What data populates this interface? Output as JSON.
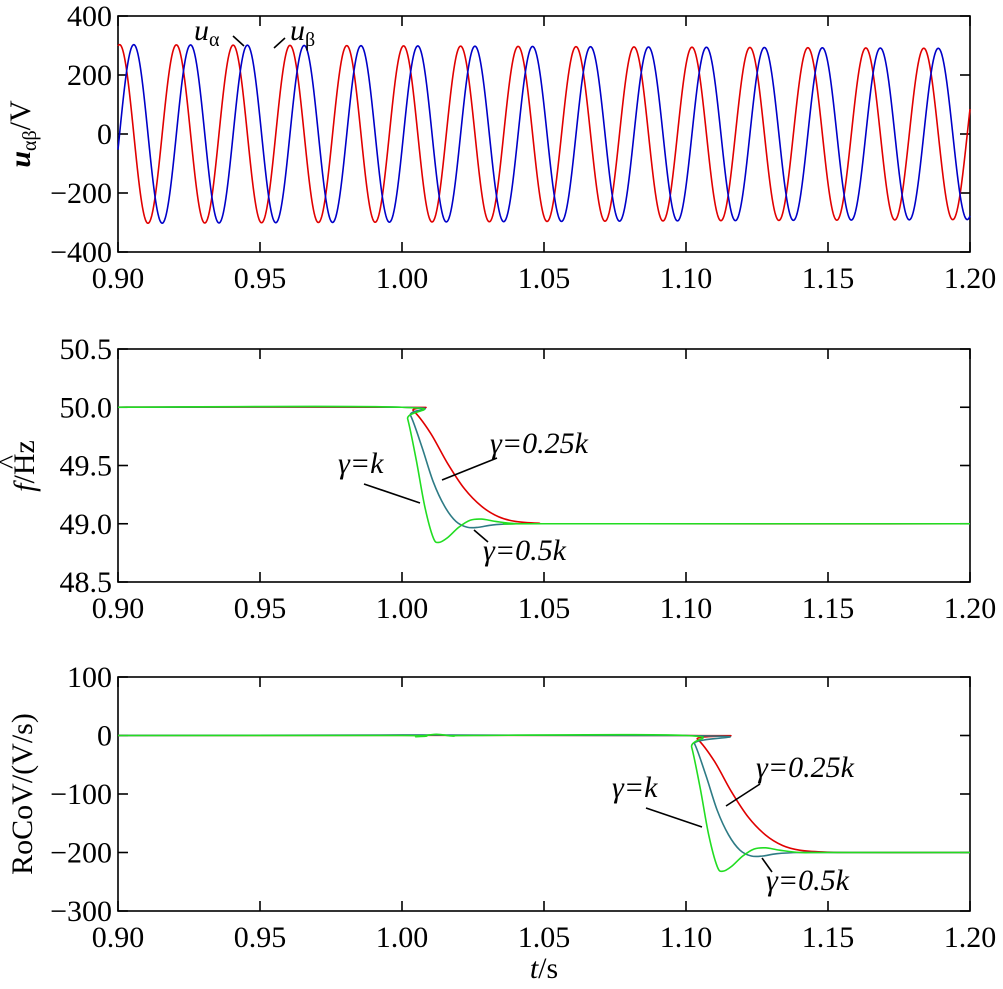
{
  "chart_data": [
    {
      "type": "line",
      "xlim": [
        0.9,
        1.2
      ],
      "ylim": [
        -400,
        400
      ],
      "xticks": [
        "0.90",
        "0.95",
        "1.00",
        "1.05",
        "1.10",
        "1.15",
        "1.20"
      ],
      "yticks": [
        "400",
        "200",
        "0",
        "−200",
        "−400"
      ],
      "ylabel": {
        "main": "u",
        "sub": "αβ",
        "unit": "/V"
      },
      "series": [
        {
          "label_main": "u",
          "label_sub": "α",
          "color": "#e00000",
          "amplitude": 303,
          "amplitude_end": 290,
          "frequency_start": 50,
          "frequency_end": 49,
          "phase_deg": -10
        },
        {
          "label_main": "u",
          "label_sub": "β",
          "color": "#0000c8",
          "amplitude": 303,
          "amplitude_end": 290,
          "frequency_start": 50,
          "frequency_end": 49,
          "phase_deg": -100
        }
      ],
      "grid": false
    },
    {
      "type": "line",
      "xlim": [
        0.9,
        1.2
      ],
      "ylim": [
        48.5,
        50.5
      ],
      "xticks": [
        "0.90",
        "0.95",
        "1.00",
        "1.05",
        "1.10",
        "1.15",
        "1.20"
      ],
      "yticks": [
        "50.5",
        "50.0",
        "49.5",
        "49.0",
        "48.5"
      ],
      "ylabel": {
        "main": "f",
        "hat": "^",
        "unit": "/Hz"
      },
      "series": [
        {
          "name": "γ=0.25k",
          "color": "#e00000",
          "points": [
            [
              0.9,
              50.0
            ],
            [
              1.0,
              50.0
            ],
            [
              1.004,
              49.97
            ],
            [
              1.01,
              49.78
            ],
            [
              1.016,
              49.52
            ],
            [
              1.022,
              49.3
            ],
            [
              1.028,
              49.15
            ],
            [
              1.034,
              49.06
            ],
            [
              1.04,
              49.02
            ],
            [
              1.048,
              49.005
            ],
            [
              1.06,
              49.0
            ],
            [
              1.2,
              49.0
            ]
          ]
        },
        {
          "name": "γ=0.5k",
          "color": "#2e7b85",
          "points": [
            [
              0.9,
              50.0
            ],
            [
              1.0,
              50.0
            ],
            [
              1.003,
              49.93
            ],
            [
              1.007,
              49.66
            ],
            [
              1.011,
              49.36
            ],
            [
              1.015,
              49.15
            ],
            [
              1.019,
              49.02
            ],
            [
              1.023,
              48.97
            ],
            [
              1.027,
              48.97
            ],
            [
              1.032,
              48.99
            ],
            [
              1.04,
              49.0
            ],
            [
              1.05,
              49.0
            ],
            [
              1.2,
              49.0
            ]
          ]
        },
        {
          "name": "γ=k",
          "color": "#22dd22",
          "points": [
            [
              0.9,
              50.0
            ],
            [
              1.0,
              50.0
            ],
            [
              1.002,
              49.9
            ],
            [
              1.005,
              49.55
            ],
            [
              1.008,
              49.15
            ],
            [
              1.011,
              48.88
            ],
            [
              1.013,
              48.84
            ],
            [
              1.016,
              48.88
            ],
            [
              1.02,
              48.97
            ],
            [
              1.024,
              49.03
            ],
            [
              1.028,
              49.04
            ],
            [
              1.033,
              49.02
            ],
            [
              1.04,
              49.0
            ],
            [
              1.05,
              49.0
            ],
            [
              1.2,
              49.0
            ]
          ]
        }
      ],
      "grid": false
    },
    {
      "type": "line",
      "xlim": [
        0.9,
        1.2
      ],
      "ylim": [
        -300,
        100
      ],
      "xticks": [
        "0.90",
        "0.95",
        "1.00",
        "1.05",
        "1.10",
        "1.15",
        "1.20"
      ],
      "yticks": [
        "100",
        "0",
        "−100",
        "−200",
        "−300"
      ],
      "ylabel": {
        "main": "RoCoV/(V/s)"
      },
      "xlabel": {
        "main": "t",
        "unit": "/s"
      },
      "series": [
        {
          "name": "γ=0.25k",
          "color": "#e00000",
          "points": [
            [
              0.9,
              0
            ],
            [
              1.1,
              0
            ],
            [
              1.104,
              -6
            ],
            [
              1.11,
              -44
            ],
            [
              1.116,
              -96
            ],
            [
              1.122,
              -140
            ],
            [
              1.128,
              -170
            ],
            [
              1.134,
              -188
            ],
            [
              1.14,
              -196
            ],
            [
              1.148,
              -199
            ],
            [
              1.16,
              -200
            ],
            [
              1.2,
              -200
            ]
          ]
        },
        {
          "name": "γ=0.5k",
          "color": "#2e7b85",
          "points": [
            [
              0.9,
              0
            ],
            [
              1.1,
              0
            ],
            [
              1.103,
              -14
            ],
            [
              1.107,
              -68
            ],
            [
              1.111,
              -128
            ],
            [
              1.115,
              -170
            ],
            [
              1.119,
              -196
            ],
            [
              1.123,
              -206
            ],
            [
              1.127,
              -206
            ],
            [
              1.132,
              -202
            ],
            [
              1.14,
              -200
            ],
            [
              1.15,
              -200
            ],
            [
              1.2,
              -200
            ]
          ]
        },
        {
          "name": "γ=k",
          "color": "#22dd22",
          "points": [
            [
              0.9,
              0
            ],
            [
              1.0,
              0
            ],
            [
              1.005,
              -2
            ],
            [
              1.012,
              2
            ],
            [
              1.018,
              -1
            ],
            [
              1.025,
              0
            ],
            [
              1.1,
              0
            ],
            [
              1.102,
              -20
            ],
            [
              1.105,
              -90
            ],
            [
              1.108,
              -170
            ],
            [
              1.111,
              -224
            ],
            [
              1.113,
              -232
            ],
            [
              1.116,
              -224
            ],
            [
              1.12,
              -206
            ],
            [
              1.124,
              -194
            ],
            [
              1.128,
              -192
            ],
            [
              1.133,
              -196
            ],
            [
              1.14,
              -200
            ],
            [
              1.15,
              -200
            ],
            [
              1.2,
              -200
            ]
          ]
        }
      ],
      "grid": false
    }
  ],
  "annotations": {
    "top": {
      "ua_main": "u",
      "ua_sub": "α",
      "ub_main": "u",
      "ub_sub": "β"
    },
    "mid": {
      "gk": "γ=",
      "gk_it": "k",
      "g25": "γ=0.25",
      "g25_it": "k",
      "g5": "γ=0.5",
      "g5_it": "k"
    },
    "bot": {
      "gk": "γ=",
      "gk_it": "k",
      "g25": "γ=0.25",
      "g25_it": "k",
      "g5": "γ=0.5",
      "g5_it": "k"
    }
  }
}
